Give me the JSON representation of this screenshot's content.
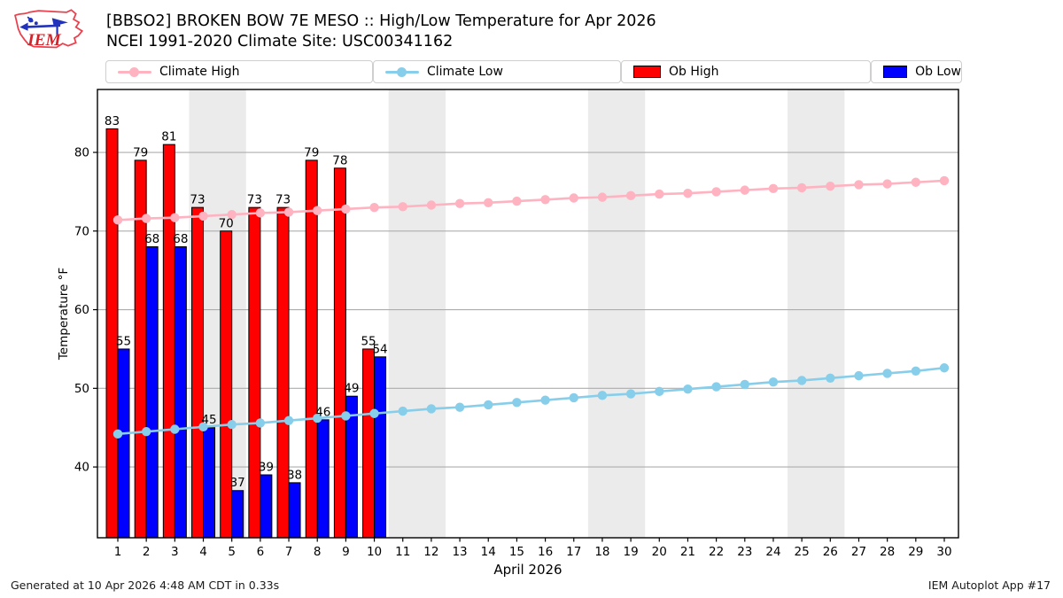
{
  "header": {
    "title": "[BBSO2] BROKEN BOW 7E MESO :: High/Low Temperature for Apr 2026",
    "subtitle": "NCEI 1991-2020 Climate Site: USC00341162",
    "logo_text": "IEM"
  },
  "legend": [
    {
      "label": "Climate High",
      "type": "line",
      "color": "#ffb3c1"
    },
    {
      "label": "Climate Low",
      "type": "line",
      "color": "#87ceeb"
    },
    {
      "label": "Ob High",
      "type": "patch",
      "color": "#ff0000"
    },
    {
      "label": "Ob Low",
      "type": "patch",
      "color": "#0000ff"
    }
  ],
  "footer": {
    "left": "Generated at 10 Apr 2026 4:48 AM CDT in 0.33s",
    "right": "IEM Autoplot App #17"
  },
  "chart_data": {
    "type": "bar",
    "x": [
      1,
      2,
      3,
      4,
      5,
      6,
      7,
      8,
      9,
      10,
      11,
      12,
      13,
      14,
      15,
      16,
      17,
      18,
      19,
      20,
      21,
      22,
      23,
      24,
      25,
      26,
      27,
      28,
      29,
      30
    ],
    "series": [
      {
        "name": "Climate High",
        "type": "line",
        "color": "#ffb3c1",
        "values": [
          71.4,
          71.6,
          71.7,
          71.9,
          72.1,
          72.3,
          72.4,
          72.6,
          72.8,
          73.0,
          73.1,
          73.3,
          73.5,
          73.6,
          73.8,
          74.0,
          74.2,
          74.3,
          74.5,
          74.7,
          74.8,
          75.0,
          75.2,
          75.4,
          75.5,
          75.7,
          75.9,
          76.0,
          76.2,
          76.4
        ]
      },
      {
        "name": "Climate Low",
        "type": "line",
        "color": "#87ceeb",
        "values": [
          44.2,
          44.5,
          44.8,
          45.1,
          45.4,
          45.6,
          45.9,
          46.2,
          46.5,
          46.8,
          47.1,
          47.4,
          47.6,
          47.9,
          48.2,
          48.5,
          48.8,
          49.1,
          49.3,
          49.6,
          49.9,
          50.2,
          50.5,
          50.8,
          51.0,
          51.3,
          51.6,
          51.9,
          52.2,
          52.6
        ]
      },
      {
        "name": "Ob High",
        "type": "bar",
        "color": "#ff0000",
        "values": [
          83,
          79,
          81,
          73,
          70,
          73,
          73,
          79,
          78,
          55,
          null,
          null,
          null,
          null,
          null,
          null,
          null,
          null,
          null,
          null,
          null,
          null,
          null,
          null,
          null,
          null,
          null,
          null,
          null,
          null
        ]
      },
      {
        "name": "Ob Low",
        "type": "bar",
        "color": "#0000ff",
        "values": [
          55,
          68,
          68,
          45,
          37,
          39,
          38,
          46,
          49,
          54,
          null,
          null,
          null,
          null,
          null,
          null,
          null,
          null,
          null,
          null,
          null,
          null,
          null,
          null,
          null,
          null,
          null,
          null,
          null,
          null
        ]
      }
    ],
    "title": "[BBSO2] BROKEN BOW 7E MESO :: High/Low Temperature for Apr 2026",
    "xlabel": "April 2026",
    "ylabel": "Temperature °F",
    "ylim": [
      31,
      88
    ],
    "yticks": [
      40,
      50,
      60,
      70,
      80
    ],
    "weekend_shading_days": [
      [
        4,
        5
      ],
      [
        11,
        12
      ],
      [
        18,
        19
      ],
      [
        25,
        26
      ]
    ],
    "legend_position": "top",
    "grid": "horizontal",
    "band_color": "#ebebeb",
    "grid_color": "#adadad",
    "frame_color": "#000000",
    "bar_label_color": "#000000"
  }
}
